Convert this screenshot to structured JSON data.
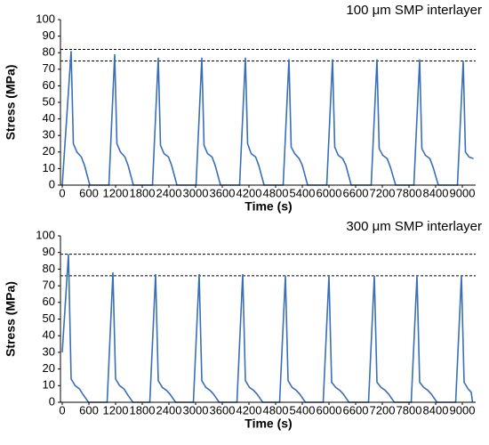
{
  "chart_data": [
    {
      "type": "line",
      "annotation": "100 μm SMP interlayer",
      "xlabel": "Time (s)",
      "ylabel": "Stress (MPa)",
      "color": "#3a6fb8",
      "xlim": [
        -40,
        9300
      ],
      "ylim": [
        0,
        100
      ],
      "xticks": [
        0,
        600,
        1200,
        1800,
        2400,
        3000,
        3600,
        4200,
        4800,
        5400,
        6000,
        6600,
        7200,
        7800,
        8400,
        9000
      ],
      "yticks": [
        0,
        10,
        20,
        30,
        40,
        50,
        60,
        70,
        80,
        90,
        100
      ],
      "reference_lines": [
        82,
        75
      ],
      "x": [
        0,
        200,
        250,
        330,
        430,
        500,
        620,
        1050,
        1180,
        1230,
        1310,
        1410,
        1480,
        1600,
        2030,
        2160,
        2210,
        2290,
        2390,
        2460,
        2580,
        3010,
        3140,
        3190,
        3270,
        3370,
        3440,
        3560,
        3990,
        4120,
        4170,
        4250,
        4350,
        4420,
        4540,
        4970,
        5100,
        5150,
        5230,
        5330,
        5400,
        5520,
        5950,
        6080,
        6130,
        6210,
        6310,
        6380,
        6500,
        6950,
        7080,
        7130,
        7210,
        7310,
        7380,
        7500,
        7910,
        8040,
        8090,
        8170,
        8270,
        8340,
        8460,
        8890,
        9020,
        9070,
        9150,
        9250
      ],
      "values": [
        0,
        81,
        25,
        20,
        17,
        12,
        0,
        0,
        79,
        25,
        20,
        17,
        12,
        0,
        0,
        77,
        24,
        19,
        17,
        12,
        0,
        0,
        77,
        24,
        19,
        17,
        12,
        0,
        0,
        77,
        25,
        19,
        17,
        12,
        0,
        0,
        76,
        23,
        19,
        16,
        12,
        0,
        0,
        76,
        23,
        18,
        16,
        12,
        0,
        0,
        76,
        22,
        18,
        16,
        11,
        0,
        0,
        76,
        22,
        18,
        16,
        11,
        0,
        0,
        75,
        20,
        17,
        16
      ]
    },
    {
      "type": "line",
      "annotation": "300 μm SMP interlayer",
      "xlabel": "Time (s)",
      "ylabel": "Stress (MPa)",
      "color": "#3a6fb8",
      "xlim": [
        -40,
        9300
      ],
      "ylim": [
        0,
        100
      ],
      "xticks": [
        0,
        600,
        1200,
        1800,
        2400,
        3000,
        3600,
        4200,
        4800,
        5400,
        6000,
        6600,
        7200,
        7800,
        8400,
        9000
      ],
      "yticks": [
        0,
        10,
        20,
        30,
        40,
        50,
        60,
        70,
        80,
        90,
        100
      ],
      "reference_lines": [
        89,
        76
      ],
      "x": [
        0,
        140,
        200,
        290,
        390,
        460,
        590,
        1010,
        1140,
        1200,
        1290,
        1390,
        1460,
        1590,
        1970,
        2100,
        2160,
        2250,
        2350,
        2420,
        2550,
        2950,
        3080,
        3140,
        3230,
        3330,
        3400,
        3530,
        3930,
        4060,
        4120,
        4210,
        4310,
        4380,
        4510,
        4890,
        5020,
        5080,
        5170,
        5270,
        5340,
        5470,
        5870,
        6000,
        6060,
        6150,
        6250,
        6320,
        6450,
        6890,
        7020,
        7080,
        7170,
        7270,
        7340,
        7470,
        7850,
        7980,
        8040,
        8130,
        8230,
        8300,
        8430,
        8850,
        8980,
        9040,
        9130,
        9200,
        9230
      ],
      "values": [
        30,
        89,
        14,
        10,
        8,
        5,
        0,
        0,
        78,
        14,
        10,
        8,
        5,
        0,
        0,
        77,
        13,
        9,
        7,
        5,
        0,
        0,
        77,
        13,
        9,
        7,
        5,
        0,
        0,
        77,
        13,
        9,
        7,
        5,
        0,
        0,
        76,
        13,
        9,
        7,
        5,
        0,
        0,
        76,
        12,
        9,
        7,
        5,
        0,
        0,
        76,
        12,
        9,
        7,
        5,
        0,
        0,
        76,
        12,
        9,
        7,
        5,
        0,
        0,
        76,
        12,
        8,
        6,
        0
      ]
    }
  ]
}
